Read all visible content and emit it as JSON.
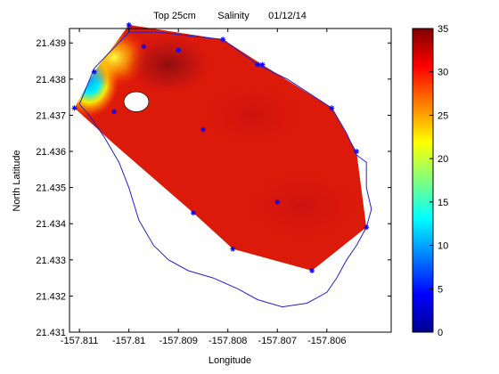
{
  "chart_data": {
    "type": "heatmap",
    "title": "Top 25cm        Salinity       01/12/14",
    "xlabel": "Longitude",
    "ylabel": "North Latitude",
    "xlim": [
      -157.8112,
      -157.8047
    ],
    "ylim": [
      21.431,
      21.4394
    ],
    "x_ticks": [
      -157.811,
      -157.81,
      -157.809,
      -157.808,
      -157.807,
      -157.806
    ],
    "x_tick_labels": [
      "-157.811",
      "-157.81",
      "-157.809",
      "-157.808",
      "-157.807",
      "-157.806"
    ],
    "y_ticks": [
      21.431,
      21.432,
      21.433,
      21.434,
      21.435,
      21.436,
      21.437,
      21.438,
      21.439
    ],
    "y_tick_labels": [
      "21.431",
      "21.432",
      "21.433",
      "21.434",
      "21.435",
      "21.436",
      "21.437",
      "21.438",
      "21.439"
    ],
    "colorbar": {
      "range": [
        0,
        35
      ],
      "ticks": [
        0,
        5,
        10,
        15,
        20,
        25,
        30,
        35
      ],
      "tick_labels": [
        "0",
        "5",
        "10",
        "15",
        "20",
        "25",
        "30",
        "35"
      ],
      "colormap": "jet"
    },
    "stations": [
      {
        "x": -157.8111,
        "y": 21.4372
      },
      {
        "x": -157.8107,
        "y": 21.4382
      },
      {
        "x": -157.8103,
        "y": 21.4371
      },
      {
        "x": -157.81,
        "y": 21.4395
      },
      {
        "x": -157.8097,
        "y": 21.4389
      },
      {
        "x": -157.809,
        "y": 21.4388
      },
      {
        "x": -157.8081,
        "y": 21.4391
      },
      {
        "x": -157.8073,
        "y": 21.4384
      },
      {
        "x": -157.8085,
        "y": 21.4366
      },
      {
        "x": -157.8074,
        "y": 21.4384
      },
      {
        "x": -157.8059,
        "y": 21.4372
      },
      {
        "x": -157.8054,
        "y": 21.436
      },
      {
        "x": -157.8052,
        "y": 21.4339
      },
      {
        "x": -157.8063,
        "y": 21.4327
      },
      {
        "x": -157.807,
        "y": 21.4346
      },
      {
        "x": -157.8079,
        "y": 21.4333
      },
      {
        "x": -157.8087,
        "y": 21.4343
      }
    ],
    "hull": [
      {
        "x": -157.8111,
        "y": 21.4372
      },
      {
        "x": -157.8107,
        "y": 21.4382
      },
      {
        "x": -157.81,
        "y": 21.4395
      },
      {
        "x": -157.8081,
        "y": 21.4391
      },
      {
        "x": -157.8073,
        "y": 21.4384
      },
      {
        "x": -157.8059,
        "y": 21.4372
      },
      {
        "x": -157.8054,
        "y": 21.436
      },
      {
        "x": -157.8052,
        "y": 21.4339
      },
      {
        "x": -157.8063,
        "y": 21.4327
      },
      {
        "x": -157.8079,
        "y": 21.4333
      },
      {
        "x": -157.8087,
        "y": 21.4343
      },
      {
        "x": -157.8103,
        "y": 21.4362
      }
    ],
    "coastline": [
      {
        "x": -157.811,
        "y": 21.4373
      },
      {
        "x": -157.8107,
        "y": 21.4383
      },
      {
        "x": -157.81,
        "y": 21.4393
      },
      {
        "x": -157.8094,
        "y": 21.4393
      },
      {
        "x": -157.8088,
        "y": 21.4392
      },
      {
        "x": -157.8081,
        "y": 21.4391
      },
      {
        "x": -157.8074,
        "y": 21.4384
      },
      {
        "x": -157.8068,
        "y": 21.438
      },
      {
        "x": -157.8059,
        "y": 21.4372
      },
      {
        "x": -157.8056,
        "y": 21.4365
      },
      {
        "x": -157.8054,
        "y": 21.4359
      },
      {
        "x": -157.8052,
        "y": 21.4357
      },
      {
        "x": -157.8052,
        "y": 21.435
      },
      {
        "x": -157.8051,
        "y": 21.4344
      },
      {
        "x": -157.8052,
        "y": 21.4339
      },
      {
        "x": -157.8054,
        "y": 21.4334
      },
      {
        "x": -157.8056,
        "y": 21.433
      },
      {
        "x": -157.8058,
        "y": 21.4325
      },
      {
        "x": -157.806,
        "y": 21.4321
      },
      {
        "x": -157.8064,
        "y": 21.4318
      },
      {
        "x": -157.8069,
        "y": 21.4317
      },
      {
        "x": -157.8074,
        "y": 21.4319
      },
      {
        "x": -157.8078,
        "y": 21.4322
      },
      {
        "x": -157.8083,
        "y": 21.4325
      },
      {
        "x": -157.8088,
        "y": 21.4327
      },
      {
        "x": -157.8092,
        "y": 21.433
      },
      {
        "x": -157.8095,
        "y": 21.4334
      },
      {
        "x": -157.8098,
        "y": 21.4341
      },
      {
        "x": -157.81,
        "y": 21.435
      },
      {
        "x": -157.8102,
        "y": 21.4357
      },
      {
        "x": -157.8105,
        "y": 21.4364
      },
      {
        "x": -157.8108,
        "y": 21.437
      },
      {
        "x": -157.811,
        "y": 21.4373
      }
    ],
    "island": [
      {
        "x": -157.8098,
        "y": 21.4371
      },
      {
        "x": -157.8096,
        "y": 21.4374
      },
      {
        "x": -157.8099,
        "y": 21.4376
      },
      {
        "x": -157.8101,
        "y": 21.4374
      }
    ],
    "salinity_features": [
      {
        "x": -157.8108,
        "y": 21.438,
        "value": 15
      },
      {
        "x": -157.8103,
        "y": 21.4386,
        "value": 27
      },
      {
        "x": -157.8092,
        "y": 21.4384,
        "value": 34
      },
      {
        "x": -157.8075,
        "y": 21.437,
        "value": 32
      },
      {
        "x": -157.8065,
        "y": 21.4345,
        "value": 31
      }
    ]
  }
}
